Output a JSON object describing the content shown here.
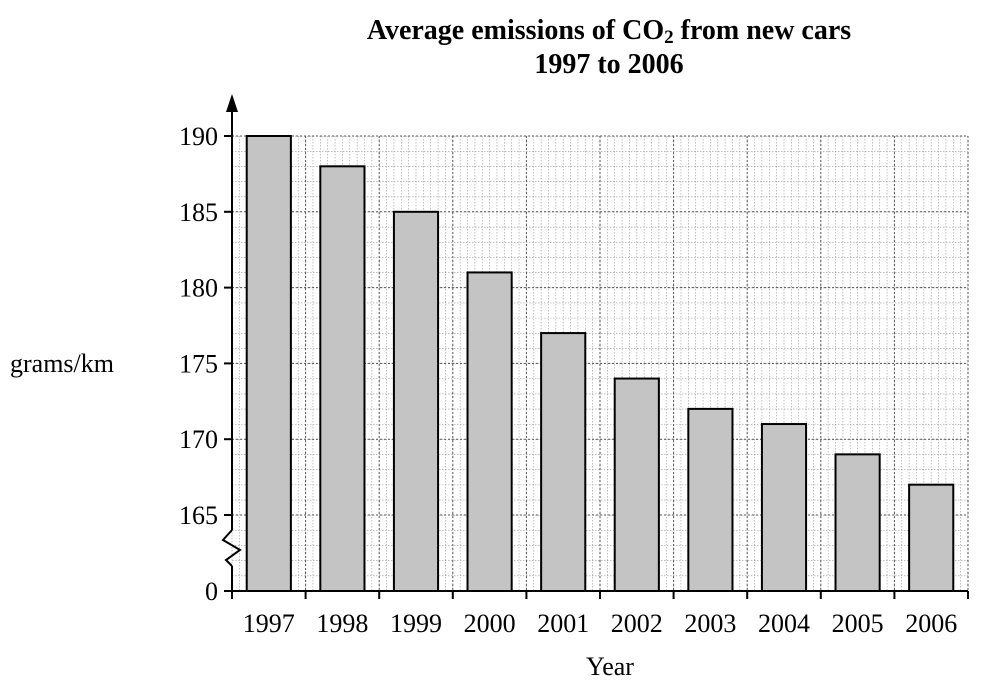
{
  "chart_data": {
    "type": "bar",
    "title_line1_pre": "Average emissions of CO",
    "title_sub": "2",
    "title_line1_post": " from new cars",
    "title_line2": "1997 to 2006",
    "xlabel": "Year",
    "ylabel": "grams/km",
    "categories": [
      "1997",
      "1998",
      "1999",
      "2000",
      "2001",
      "2002",
      "2003",
      "2004",
      "2005",
      "2006"
    ],
    "values": [
      190,
      188,
      185,
      181,
      177,
      174,
      172,
      171,
      169,
      167
    ],
    "yticks": [
      165,
      170,
      175,
      180,
      185,
      190
    ],
    "y_zero_label": "0",
    "ylim": [
      165,
      190
    ],
    "axis_break": true,
    "grid": true,
    "bar_color": "#c4c4c4"
  }
}
